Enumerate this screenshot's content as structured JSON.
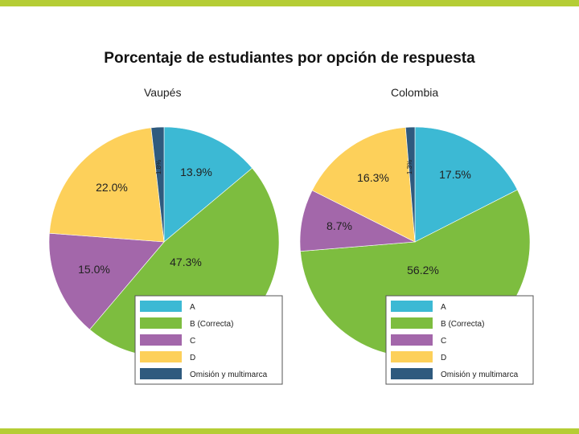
{
  "title": "Porcentaje de estudiantes por opción de respuesta",
  "chart_data": [
    {
      "type": "pie",
      "title": "Vaupés",
      "categories": [
        "A",
        "B (Correcta)",
        "C",
        "D",
        "Omisión y multimarca"
      ],
      "values": [
        13.9,
        47.3,
        15.0,
        22.0,
        1.8
      ],
      "labels": [
        "13.9%",
        "47.3%",
        "15.0%",
        "22.0%",
        "1.8%"
      ],
      "colors": [
        "#3cb9d4",
        "#7dbd3f",
        "#a367aa",
        "#fdd05a",
        "#2f5a7e"
      ],
      "legend": "bottom-right"
    },
    {
      "type": "pie",
      "title": "Colombia",
      "categories": [
        "A",
        "B (Correcta)",
        "C",
        "D",
        "Omisión y multimarca"
      ],
      "values": [
        17.5,
        56.2,
        8.7,
        16.3,
        1.3
      ],
      "labels": [
        "17.5%",
        "56.2%",
        "8.7%",
        "16.3%",
        "1.3%"
      ],
      "colors": [
        "#3cb9d4",
        "#7dbd3f",
        "#a367aa",
        "#fdd05a",
        "#2f5a7e"
      ],
      "legend": "bottom-right"
    }
  ]
}
